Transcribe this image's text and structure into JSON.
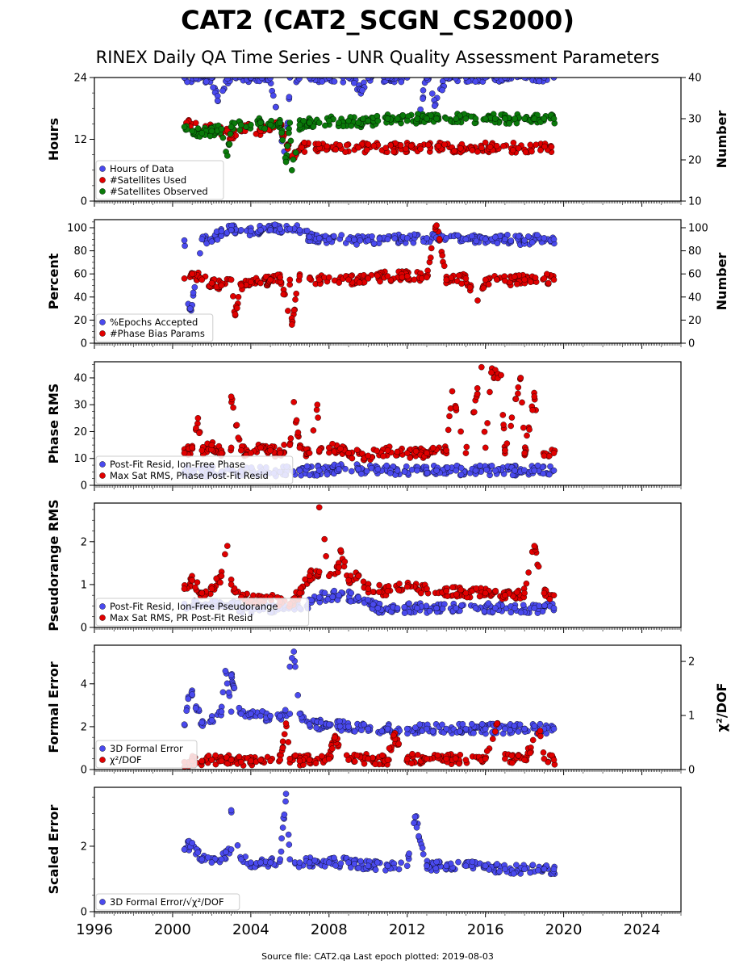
{
  "figure": {
    "title": "CAT2 (CAT2_SCGN_CS2000)",
    "subtitle": "RINEX Daily QA Time Series - UNR Quality Assessment Parameters",
    "footer": "Source file: CAT2.qa Last epoch plotted: 2019-08-03"
  },
  "chart_data": [
    {
      "type": "scatter",
      "id": "hours",
      "ylabel": "Hours",
      "ylabel_right": "Number",
      "xlim": [
        1996,
        2026
      ],
      "ylim": [
        0,
        24
      ],
      "yticks": [
        0,
        12,
        24
      ],
      "ylim_right": [
        10,
        40
      ],
      "yticks_right": [
        10,
        20,
        30,
        40
      ],
      "legend_position": "bottom-left",
      "colors": {
        "blue": "#4a4aee",
        "red": "#e00000",
        "green": "#0a7a0a"
      },
      "series": [
        {
          "name": "Hours of Data",
          "color": "#4a4aee",
          "axis": "left",
          "x": [
            2000.6,
            2001.2,
            2002.0,
            2002.8,
            2003.2,
            2004.0,
            2005.0,
            2006.0,
            2007.0,
            2008.0,
            2009.0,
            2010.0,
            2011.0,
            2012.0,
            2013.0,
            2014.0,
            2015.0,
            2016.0,
            2017.0,
            2018.0,
            2019.0,
            2019.5,
            2002.3,
            2005.8,
            2009.7,
            2012.2,
            2013.4
          ],
          "y": [
            24,
            23.9,
            24,
            23.8,
            24,
            24,
            23.9,
            24,
            24,
            24,
            24,
            24,
            24,
            24,
            24,
            24,
            24,
            24,
            24,
            24,
            24,
            24,
            19.5,
            8,
            21.5,
            10.5,
            18.5
          ]
        },
        {
          "name": "#Satellites Used",
          "color": "#e00000",
          "axis": "right",
          "x": [
            2000.7,
            2001.5,
            2002.0,
            2003.0,
            2003.8,
            2004.5,
            2005.5,
            2005.9,
            2006.1,
            2006.6
          ],
          "y": [
            29,
            27,
            27.5,
            26,
            28,
            27,
            28.5,
            23.5,
            21,
            23
          ]
        },
        {
          "name": "#Satellites Observed",
          "color": "#0a7a0a",
          "axis": "right",
          "x": [
            2000.6,
            2001.0,
            2001.5,
            2002.0,
            2002.5,
            2003.0,
            2003.5,
            2004.0,
            2004.5,
            2005.0,
            2005.5,
            2006.0,
            2006.5,
            2007.0,
            2007.5,
            2008.0,
            2008.5,
            2009.0,
            2009.5,
            2010.0,
            2010.5,
            2011.0,
            2011.5,
            2012.0,
            2012.5,
            2013.0,
            2013.5,
            2014.0,
            2014.5,
            2015.0,
            2015.5,
            2016.0,
            2016.5,
            2017.0,
            2017.5,
            2018.0,
            2018.5,
            2019.0,
            2019.5,
            2002.8,
            2005.8,
            2006.1
          ],
          "y": [
            28,
            27,
            26.5,
            27,
            27.5,
            28,
            28.5,
            28.5,
            29,
            28.5,
            29,
            29,
            28.5,
            29,
            29,
            29.5,
            29,
            29.5,
            29,
            29.5,
            29.5,
            30,
            30,
            29.5,
            30,
            30,
            30,
            30,
            30,
            30,
            30,
            30,
            30,
            30,
            30,
            30,
            30,
            30,
            30,
            21,
            19.5,
            17.5
          ]
        }
      ]
    },
    {
      "type": "scatter",
      "id": "percent",
      "ylabel": "Percent",
      "ylabel_right": "Number",
      "xlim": [
        1996,
        2026
      ],
      "ylim": [
        0,
        107
      ],
      "yticks": [
        0,
        20,
        40,
        60,
        80,
        100
      ],
      "yticks_right": [
        0,
        20,
        40,
        60,
        80,
        100
      ],
      "legend_position": "bottom-left",
      "series": [
        {
          "name": "%Epochs Accepted",
          "color": "#4a4aee",
          "x": [
            2000.6,
            2000.8,
            2001.0,
            2001.5,
            2002.0,
            2002.5,
            2003.0,
            2003.5,
            2004.0,
            2004.5,
            2005.0,
            2005.5,
            2006.0,
            2006.5,
            2007.0,
            2007.5,
            2008.0,
            2009.0,
            2010.0,
            2011.0,
            2012.0,
            2013.0,
            2014.0,
            2015.0,
            2016.0,
            2017.0,
            2018.0,
            2019.0,
            2019.5,
            2000.9
          ],
          "y": [
            89,
            34,
            33,
            90,
            88,
            97,
            98,
            98,
            97,
            98,
            98,
            99,
            99,
            98,
            92,
            91,
            90,
            90,
            89,
            90,
            91,
            91,
            91,
            90,
            90,
            90,
            89,
            91,
            90,
            30
          ]
        },
        {
          "name": "#Phase Bias Params",
          "color": "#e00000",
          "x": [
            2000.6,
            2001.0,
            2001.5,
            2002.0,
            2002.5,
            2003.0,
            2003.5,
            2004.0,
            2004.5,
            2005.0,
            2005.5,
            2006.0,
            2006.5,
            2007.0,
            2007.5,
            2008.0,
            2009.0,
            2010.0,
            2011.0,
            2012.0,
            2013.0,
            2014.0,
            2015.0,
            2016.0,
            2017.0,
            2018.0,
            2019.0,
            2019.5,
            2013.5,
            2005.9,
            2006.1,
            2003.2,
            2015.6
          ],
          "y": [
            56,
            60,
            55,
            52,
            50,
            55,
            50,
            53,
            52,
            55,
            57,
            55,
            58,
            56,
            55,
            57,
            55,
            56,
            58,
            58,
            57,
            55,
            56,
            55,
            54,
            55,
            56,
            55,
            102,
            28,
            16,
            25,
            37
          ]
        }
      ]
    },
    {
      "type": "scatter",
      "id": "phase",
      "ylabel": "Phase RMS",
      "xlim": [
        1996,
        2026
      ],
      "ylim": [
        0,
        46
      ],
      "yticks": [
        0,
        10,
        20,
        30,
        40
      ],
      "legend_position": "bottom-left",
      "series": [
        {
          "name": "Post-Fit Resid, Ion-Free Phase",
          "color": "#4a4aee",
          "x": [
            2000.6,
            2001.5,
            2002.5,
            2003.5,
            2004.5,
            2005.5,
            2006.5,
            2007.5,
            2008.5,
            2009.5,
            2010.5,
            2011.5,
            2012.5,
            2013.5,
            2014.5,
            2015.5,
            2016.5,
            2017.5,
            2018.5,
            2019.5
          ],
          "y": [
            5,
            5,
            5,
            5,
            5,
            5,
            5.5,
            5.5,
            6,
            6,
            6,
            5.5,
            5.5,
            5.5,
            5.5,
            5.5,
            5.5,
            5.5,
            5.5,
            5.5
          ]
        },
        {
          "name": "Max Sat RMS, Phase Post-Fit Resid",
          "color": "#e00000",
          "x": [
            2000.6,
            2001.0,
            2001.5,
            2002.0,
            2002.5,
            2003.0,
            2003.5,
            2004.0,
            2004.5,
            2005.0,
            2005.5,
            2006.0,
            2006.5,
            2007.0,
            2007.5,
            2008.0,
            2009.0,
            2010.0,
            2011.0,
            2012.0,
            2013.0,
            2014.0,
            2015.0,
            2016.0,
            2017.0,
            2018.0,
            2019.0,
            2019.5,
            2015.8,
            2016.3,
            2016.8,
            2017.8,
            2003.0,
            2006.2,
            2007.4,
            2001.3,
            2014.3,
            2018.5
          ],
          "y": [
            12,
            14,
            13,
            15,
            12,
            14,
            13,
            12,
            14,
            13,
            12,
            15,
            14,
            12,
            13,
            14,
            12,
            11,
            13,
            12,
            12,
            13,
            12,
            14,
            13,
            12,
            11,
            12,
            44,
            42,
            41,
            40,
            33,
            31,
            30,
            25,
            35,
            33
          ]
        }
      ]
    },
    {
      "type": "scatter",
      "id": "pseudorange",
      "ylabel": "Pseudorange RMS",
      "xlim": [
        1996,
        2026
      ],
      "ylim": [
        0,
        2.9
      ],
      "yticks": [
        0,
        1,
        2
      ],
      "legend_position": "bottom-left",
      "series": [
        {
          "name": "Post-Fit Resid, Ion-Free Pseudorange",
          "color": "#4a4aee",
          "x": [
            2000.6,
            2001.5,
            2002.5,
            2003.5,
            2004.5,
            2005.5,
            2006.5,
            2007.5,
            2008.5,
            2009.5,
            2010.5,
            2011.5,
            2012.5,
            2013.5,
            2014.5,
            2015.5,
            2016.5,
            2017.5,
            2018.5,
            2019.5
          ],
          "y": [
            0.55,
            0.5,
            0.55,
            0.45,
            0.45,
            0.45,
            0.45,
            0.7,
            0.75,
            0.7,
            0.45,
            0.45,
            0.45,
            0.45,
            0.45,
            0.45,
            0.45,
            0.45,
            0.45,
            0.45
          ]
        },
        {
          "name": "Max Sat RMS, PR Post-Fit Resid",
          "color": "#e00000",
          "x": [
            2000.6,
            2001.0,
            2001.5,
            2002.0,
            2002.5,
            2003.0,
            2003.5,
            2004.0,
            2004.5,
            2005.0,
            2005.5,
            2006.0,
            2006.5,
            2007.0,
            2007.5,
            2008.0,
            2008.5,
            2009.0,
            2009.5,
            2010.0,
            2011.0,
            2012.0,
            2013.0,
            2014.0,
            2015.0,
            2016.0,
            2017.0,
            2018.0,
            2019.0,
            2019.5,
            2007.5,
            2002.8,
            2018.5,
            2008.6
          ],
          "y": [
            0.9,
            1.1,
            0.8,
            0.9,
            1.2,
            1.0,
            0.7,
            0.65,
            0.65,
            0.7,
            0.6,
            0.55,
            0.8,
            1.2,
            1.3,
            1.2,
            1.4,
            1.1,
            1.2,
            0.9,
            0.85,
            0.95,
            0.9,
            0.85,
            0.8,
            0.8,
            0.75,
            0.8,
            0.8,
            0.75,
            2.8,
            1.9,
            1.9,
            1.8
          ]
        }
      ]
    },
    {
      "type": "scatter",
      "id": "formal",
      "ylabel": "Formal Error",
      "ylabel_right": "χ²/DOF",
      "xlim": [
        1996,
        2026
      ],
      "ylim": [
        0,
        5.8
      ],
      "yticks": [
        0,
        2,
        4
      ],
      "ylim_right": [
        0,
        2.3
      ],
      "yticks_right": [
        0,
        1,
        2
      ],
      "legend_position": "bottom-left",
      "series": [
        {
          "name": "3D Formal Error",
          "color": "#4a4aee",
          "x": [
            2000.6,
            2000.8,
            2001.0,
            2001.5,
            2002.0,
            2002.5,
            2003.0,
            2003.5,
            2004.0,
            2004.5,
            2005.0,
            2005.5,
            2006.0,
            2006.5,
            2007.0,
            2008.0,
            2009.0,
            2010.0,
            2011.0,
            2012.0,
            2013.0,
            2014.0,
            2015.0,
            2016.0,
            2017.0,
            2018.0,
            2019.0,
            2019.5,
            2006.0,
            2006.2,
            2002.7,
            2003.0
          ],
          "y": [
            2.1,
            3.3,
            3.5,
            2.2,
            2.3,
            2.7,
            2.7,
            2.6,
            2.6,
            2.5,
            2.5,
            2.5,
            2.6,
            2.6,
            2.1,
            2.1,
            2.0,
            1.9,
            1.9,
            1.9,
            1.9,
            1.9,
            1.9,
            1.9,
            1.9,
            1.9,
            1.9,
            1.9,
            4.8,
            5.5,
            4.6,
            4.4
          ]
        },
        {
          "name": "χ²/DOF",
          "color": "#e00000",
          "x": [
            2000.6,
            2001.0,
            2001.5,
            2002.0,
            2002.5,
            2003.0,
            2003.5,
            2004.0,
            2004.5,
            2005.0,
            2005.5,
            2006.0,
            2006.5,
            2007.0,
            2008.0,
            2009.0,
            2010.0,
            2011.0,
            2012.0,
            2013.0,
            2014.0,
            2015.0,
            2016.0,
            2017.0,
            2018.0,
            2019.0,
            2019.5,
            2005.8,
            2016.6,
            2018.8,
            2011.3,
            2008.3
          ],
          "y": [
            0.35,
            0.4,
            0.4,
            0.45,
            0.4,
            0.45,
            0.35,
            0.4,
            0.45,
            0.4,
            0.45,
            0.5,
            0.4,
            0.45,
            0.5,
            0.45,
            0.5,
            0.45,
            0.5,
            0.5,
            0.5,
            0.45,
            0.5,
            0.5,
            0.45,
            0.5,
            0.45,
            2.15,
            2.15,
            1.8,
            1.6,
            1.5
          ]
        }
      ]
    },
    {
      "type": "scatter",
      "id": "scaled",
      "ylabel": "Scaled Error",
      "xlabel_ticks": [
        "1996",
        "2000",
        "2004",
        "2008",
        "2012",
        "2016",
        "2020",
        "2024"
      ],
      "xticks": [
        1996,
        2000,
        2004,
        2008,
        2012,
        2016,
        2020,
        2024
      ],
      "xlim": [
        1996,
        2026
      ],
      "ylim": [
        0,
        3.8
      ],
      "yticks": [
        0,
        2
      ],
      "legend_position": "bottom-left",
      "series": [
        {
          "name": "3D Formal Error/√χ²/DOF",
          "color": "#4a4aee",
          "x": [
            2000.6,
            2001.0,
            2001.5,
            2002.0,
            2002.5,
            2003.0,
            2003.5,
            2004.0,
            2004.5,
            2005.0,
            2005.5,
            2006.0,
            2006.5,
            2007.0,
            2008.0,
            2009.0,
            2010.0,
            2011.0,
            2012.0,
            2013.0,
            2014.0,
            2015.0,
            2016.0,
            2017.0,
            2018.0,
            2019.0,
            2019.5,
            2005.8,
            2003.0,
            2012.4
          ],
          "y": [
            1.9,
            2.1,
            1.6,
            1.5,
            1.6,
            1.9,
            1.6,
            1.5,
            1.5,
            1.5,
            1.6,
            1.6,
            1.5,
            1.5,
            1.5,
            1.5,
            1.4,
            1.4,
            1.4,
            1.4,
            1.4,
            1.4,
            1.4,
            1.3,
            1.3,
            1.3,
            1.3,
            3.6,
            3.1,
            2.9
          ]
        }
      ]
    }
  ]
}
